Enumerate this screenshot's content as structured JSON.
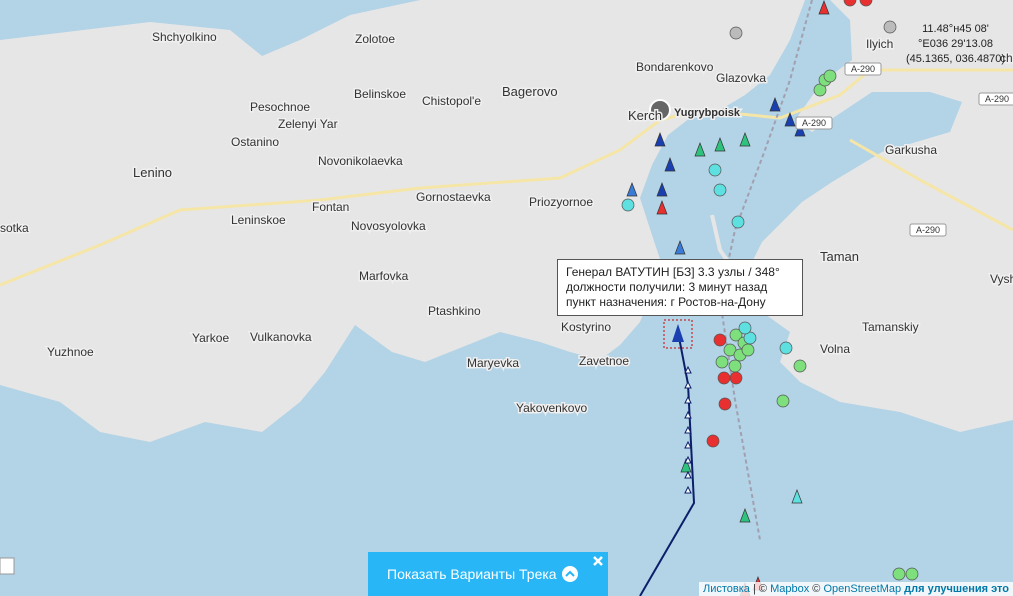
{
  "map": {
    "places": [
      "Shchyolkino",
      "Zolotoe",
      "Bondarenkovo",
      "Glazovka",
      "Ilyich",
      "Belinskoe",
      "Chistopol'e",
      "Bagerovo",
      "Pesochnoe",
      "Zelenyi Yar",
      "Kerch",
      "Yugrybpoisk",
      "Ostanino",
      "Novonikolaevka",
      "Lenino",
      "Gornostaevka",
      "Fontan",
      "Priozyornoe",
      "Leninskoe",
      "Novosyolovka",
      "sotka",
      "Garkusha",
      "Taman",
      "Vysh",
      "Marfovka",
      "Tamanskiy",
      "Ptashkino",
      "Yarkoe",
      "Vulkanovka",
      "Kostyrino",
      "Volna",
      "Yuzhnoe",
      "Zavetnoe",
      "Maryevka",
      "Yakovenkovo",
      "chu"
    ],
    "roads": [
      "A-290",
      "A-290",
      "A-290",
      "A-290"
    ]
  },
  "coordinates": [
    "11.48°н45 08'",
    "°E036 29'13.08",
    "(45.1365, 036.4870)"
  ],
  "tooltip": [
    "Генерал ВАТУТИН [БЗ] 3.3 узлы / 348°",
    "должности получили: 3 минут назад",
    "пункт назначения: г Ростов-на-Дону"
  ],
  "button": "Показать Варианты Трека",
  "attribution": [
    "Листовка",
    "| ©",
    "Mapbox",
    "©",
    "OpenStreetMap",
    "для улучшения это"
  ]
}
